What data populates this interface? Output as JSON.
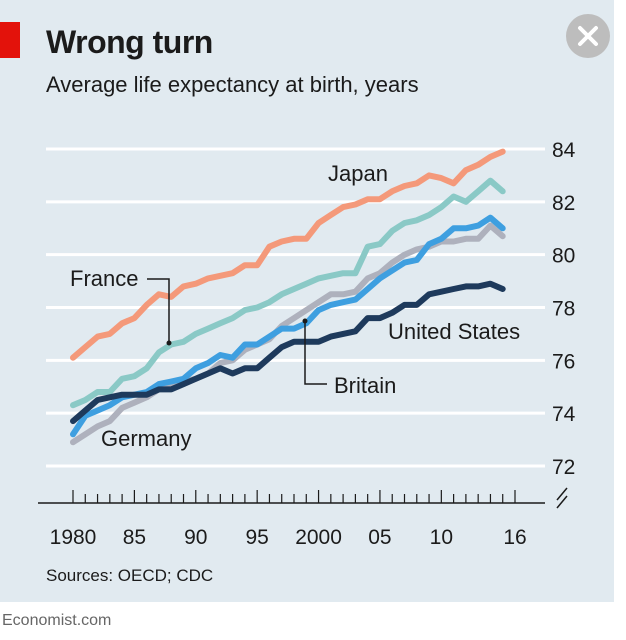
{
  "header": {
    "title": "Wrong turn",
    "subtitle": "Average life expectancy at birth, years",
    "close_icon": "close-icon"
  },
  "footer": {
    "source": "Sources: OECD; CDC",
    "publisher": "Economist.com"
  },
  "colors": {
    "background": "#e1eaf0",
    "accent": "#e3120b",
    "Japan": "#f4997a",
    "France": "#8ac9c6",
    "Britain": "#3e9fe0",
    "Germany": "#aeb1bd",
    "United States": "#1e3a5c"
  },
  "chart_data": {
    "type": "line",
    "title": "Wrong turn",
    "subtitle": "Average life expectancy at birth, years",
    "xlabel": "",
    "ylabel": "",
    "xlim": [
      1980,
      2016
    ],
    "ylim": [
      72,
      84
    ],
    "yticks": [
      72,
      74,
      76,
      78,
      80,
      82,
      84
    ],
    "xtick_labels": [
      {
        "x": 1980,
        "label": "1980"
      },
      {
        "x": 1985,
        "label": "85"
      },
      {
        "x": 1990,
        "label": "90"
      },
      {
        "x": 1995,
        "label": "95"
      },
      {
        "x": 2000,
        "label": "2000"
      },
      {
        "x": 2005,
        "label": "05"
      },
      {
        "x": 2010,
        "label": "10"
      },
      {
        "x": 2016,
        "label": "16"
      }
    ],
    "grid": "horizontal",
    "axis_break": true,
    "x": [
      1980,
      1981,
      1982,
      1983,
      1984,
      1985,
      1986,
      1987,
      1988,
      1989,
      1990,
      1991,
      1992,
      1993,
      1994,
      1995,
      1996,
      1997,
      1998,
      1999,
      2000,
      2001,
      2002,
      2003,
      2004,
      2005,
      2006,
      2007,
      2008,
      2009,
      2010,
      2011,
      2012,
      2013,
      2014,
      2015
    ],
    "series": [
      {
        "name": "Japan",
        "values": [
          76.1,
          76.5,
          76.9,
          77.0,
          77.4,
          77.6,
          78.1,
          78.5,
          78.4,
          78.8,
          78.9,
          79.1,
          79.2,
          79.3,
          79.6,
          79.6,
          80.3,
          80.5,
          80.6,
          80.6,
          81.2,
          81.5,
          81.8,
          81.9,
          82.1,
          82.1,
          82.4,
          82.6,
          82.7,
          83.0,
          82.9,
          82.7,
          83.2,
          83.4,
          83.7,
          83.9
        ]
      },
      {
        "name": "France",
        "values": [
          74.3,
          74.5,
          74.8,
          74.8,
          75.3,
          75.4,
          75.7,
          76.3,
          76.6,
          76.7,
          77.0,
          77.2,
          77.4,
          77.6,
          77.9,
          78.0,
          78.2,
          78.5,
          78.7,
          78.9,
          79.1,
          79.2,
          79.3,
          79.3,
          80.3,
          80.4,
          80.9,
          81.2,
          81.3,
          81.5,
          81.8,
          82.2,
          82.0,
          82.4,
          82.8,
          82.4
        ]
      },
      {
        "name": "Britain",
        "values": [
          73.2,
          73.9,
          74.1,
          74.3,
          74.6,
          74.7,
          74.8,
          75.1,
          75.2,
          75.3,
          75.7,
          75.9,
          76.2,
          76.1,
          76.6,
          76.6,
          76.9,
          77.2,
          77.2,
          77.4,
          77.9,
          78.1,
          78.2,
          78.3,
          78.7,
          79.1,
          79.4,
          79.7,
          79.8,
          80.4,
          80.6,
          81.0,
          81.0,
          81.1,
          81.4,
          81.0
        ]
      },
      {
        "name": "Germany",
        "values": [
          72.9,
          73.2,
          73.5,
          73.7,
          74.2,
          74.4,
          74.6,
          74.9,
          75.1,
          75.2,
          75.3,
          75.5,
          75.9,
          76.0,
          76.4,
          76.6,
          76.8,
          77.3,
          77.6,
          77.9,
          78.2,
          78.5,
          78.5,
          78.6,
          79.1,
          79.3,
          79.7,
          80.0,
          80.2,
          80.3,
          80.5,
          80.5,
          80.6,
          80.6,
          81.1,
          80.7
        ]
      },
      {
        "name": "United States",
        "values": [
          73.7,
          74.1,
          74.5,
          74.6,
          74.7,
          74.7,
          74.7,
          74.9,
          74.9,
          75.1,
          75.3,
          75.5,
          75.7,
          75.5,
          75.7,
          75.7,
          76.1,
          76.5,
          76.7,
          76.7,
          76.7,
          76.9,
          77.0,
          77.1,
          77.6,
          77.6,
          77.8,
          78.1,
          78.1,
          78.5,
          78.6,
          78.7,
          78.8,
          78.8,
          78.9,
          78.7
        ]
      }
    ],
    "annotations": [
      {
        "series": "Japan",
        "text": "Japan"
      },
      {
        "series": "France",
        "text": "France"
      },
      {
        "series": "United States",
        "text": "United States"
      },
      {
        "series": "Britain",
        "text": "Britain"
      },
      {
        "series": "Germany",
        "text": "Germany"
      }
    ]
  }
}
